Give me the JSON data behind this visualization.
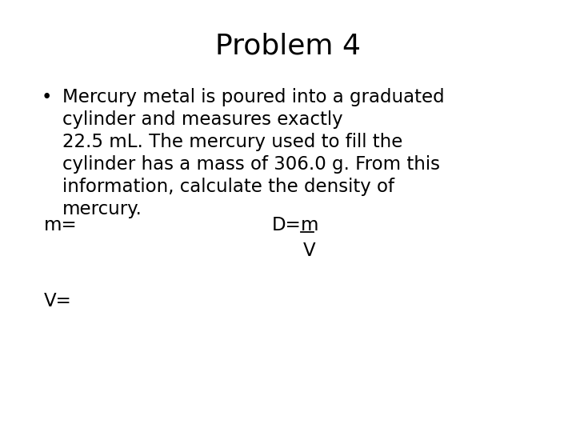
{
  "title": "Problem 4",
  "title_fontsize": 26,
  "background_color": "#ffffff",
  "text_color": "#000000",
  "bullet_lines": [
    "Mercury metal is poured into a graduated",
    "cylinder and measures exactly",
    "22.5 mL. The mercury used to fill the",
    "cylinder has a mass of 306.0 g. From this",
    "information, calculate the density of",
    "mercury."
  ],
  "bullet_fontsize": 16.5,
  "m_label": "m=",
  "D_prefix": "D=",
  "D_m": "m",
  "V_denom": "V",
  "Veq_label": "V=",
  "font_family": "DejaVu Sans"
}
